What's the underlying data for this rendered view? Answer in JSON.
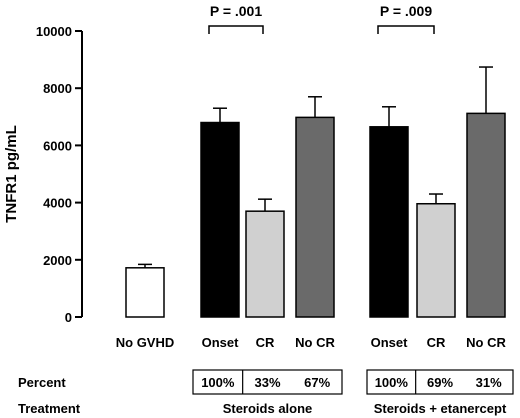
{
  "chart_data": {
    "type": "bar",
    "ylabel": "TNFR1 pg/mL",
    "ylim": [
      0,
      10000
    ],
    "yticks": [
      0,
      2000,
      4000,
      6000,
      8000,
      10000
    ],
    "ytick_labels": [
      "0",
      "2000",
      "4000",
      "6000",
      "8000",
      "10000"
    ],
    "grid": false,
    "categories": [
      "No GVHD",
      "Onset",
      "CR",
      "No CR",
      "Onset",
      "CR",
      "No CR"
    ],
    "values": [
      1720,
      6800,
      3700,
      6980,
      6650,
      3960,
      7120
    ],
    "errors": [
      120,
      500,
      420,
      720,
      700,
      340,
      1620
    ],
    "bar_colors": [
      "#ffffff",
      "#000000",
      "#d0d0d0",
      "#6a6a6a",
      "#000000",
      "#d0d0d0",
      "#6a6a6a"
    ],
    "annotations": [
      {
        "label": "P = .001",
        "from_index": 1,
        "to_index": 2
      },
      {
        "label": "P = .009",
        "from_index": 4,
        "to_index": 5
      }
    ],
    "table": {
      "percent_label": "Percent",
      "treatment_label": "Treatment",
      "groups": [
        {
          "treatment": "Steroids alone",
          "percents": [
            "100%",
            "33%",
            "67%"
          ]
        },
        {
          "treatment": "Steroids + etanercept",
          "percents": [
            "100%",
            "69%",
            "31%"
          ]
        }
      ]
    }
  }
}
